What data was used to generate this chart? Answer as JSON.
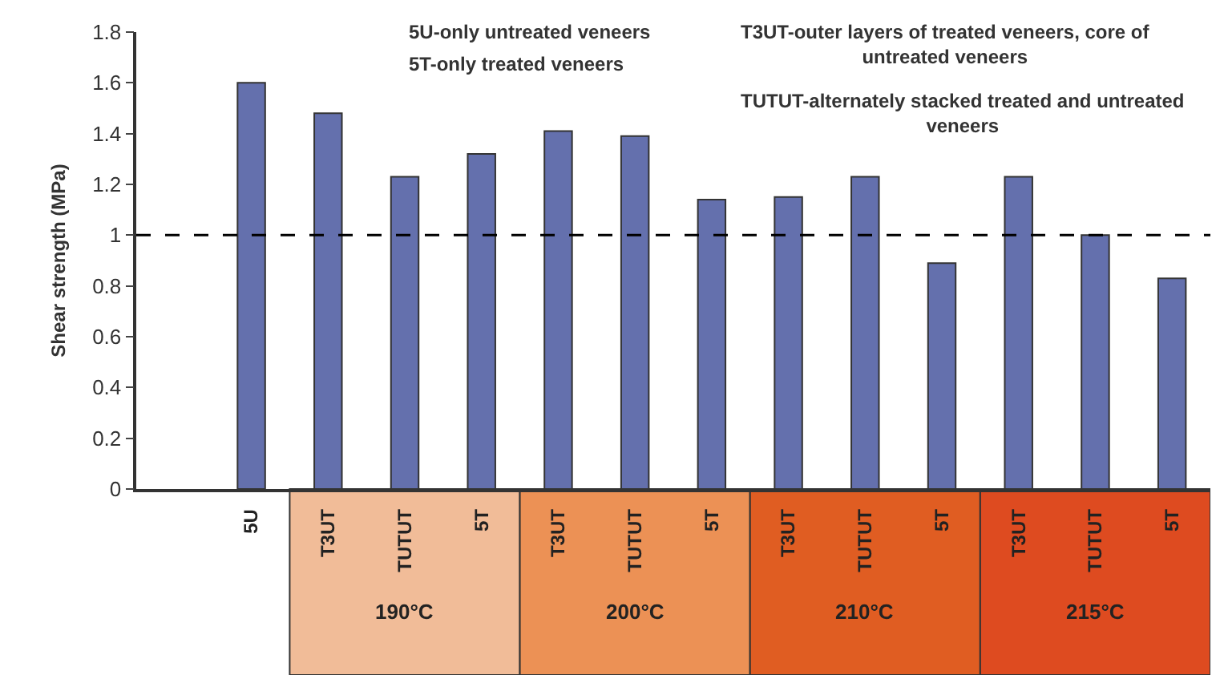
{
  "chart_data": {
    "type": "bar",
    "ylabel": "Shear strength (MPa)",
    "categories": [
      "5U",
      "T3UT",
      "TUTUT",
      "5T",
      "T3UT",
      "TUTUT",
      "5T",
      "T3UT",
      "TUTUT",
      "5T",
      "T3UT",
      "TUTUT",
      "5T"
    ],
    "values": [
      1.6,
      1.48,
      1.23,
      1.32,
      1.41,
      1.39,
      1.14,
      1.15,
      1.23,
      0.89,
      1.23,
      1.0,
      0.83
    ],
    "color": "#6470ad",
    "ylim": [
      0,
      1.8
    ],
    "yticks": [
      0,
      0.2,
      0.4,
      0.6,
      0.8,
      1,
      1.2,
      1.4,
      1.6,
      1.8
    ],
    "legend": false,
    "ref_lines": [
      {
        "axis": "y",
        "value": 1,
        "color": "#000000",
        "line_style": "dashed"
      }
    ],
    "annotations": [
      "5U-only untreated veneers",
      "5T-only treated veneers",
      "T3UT-outer layers of treated veneers, core of\nuntreated veneers",
      "TUTUT-alternately stacked treated and untreated\nveneers",
      "190°C",
      "200°C",
      "210°C",
      "215°C"
    ]
  }
}
